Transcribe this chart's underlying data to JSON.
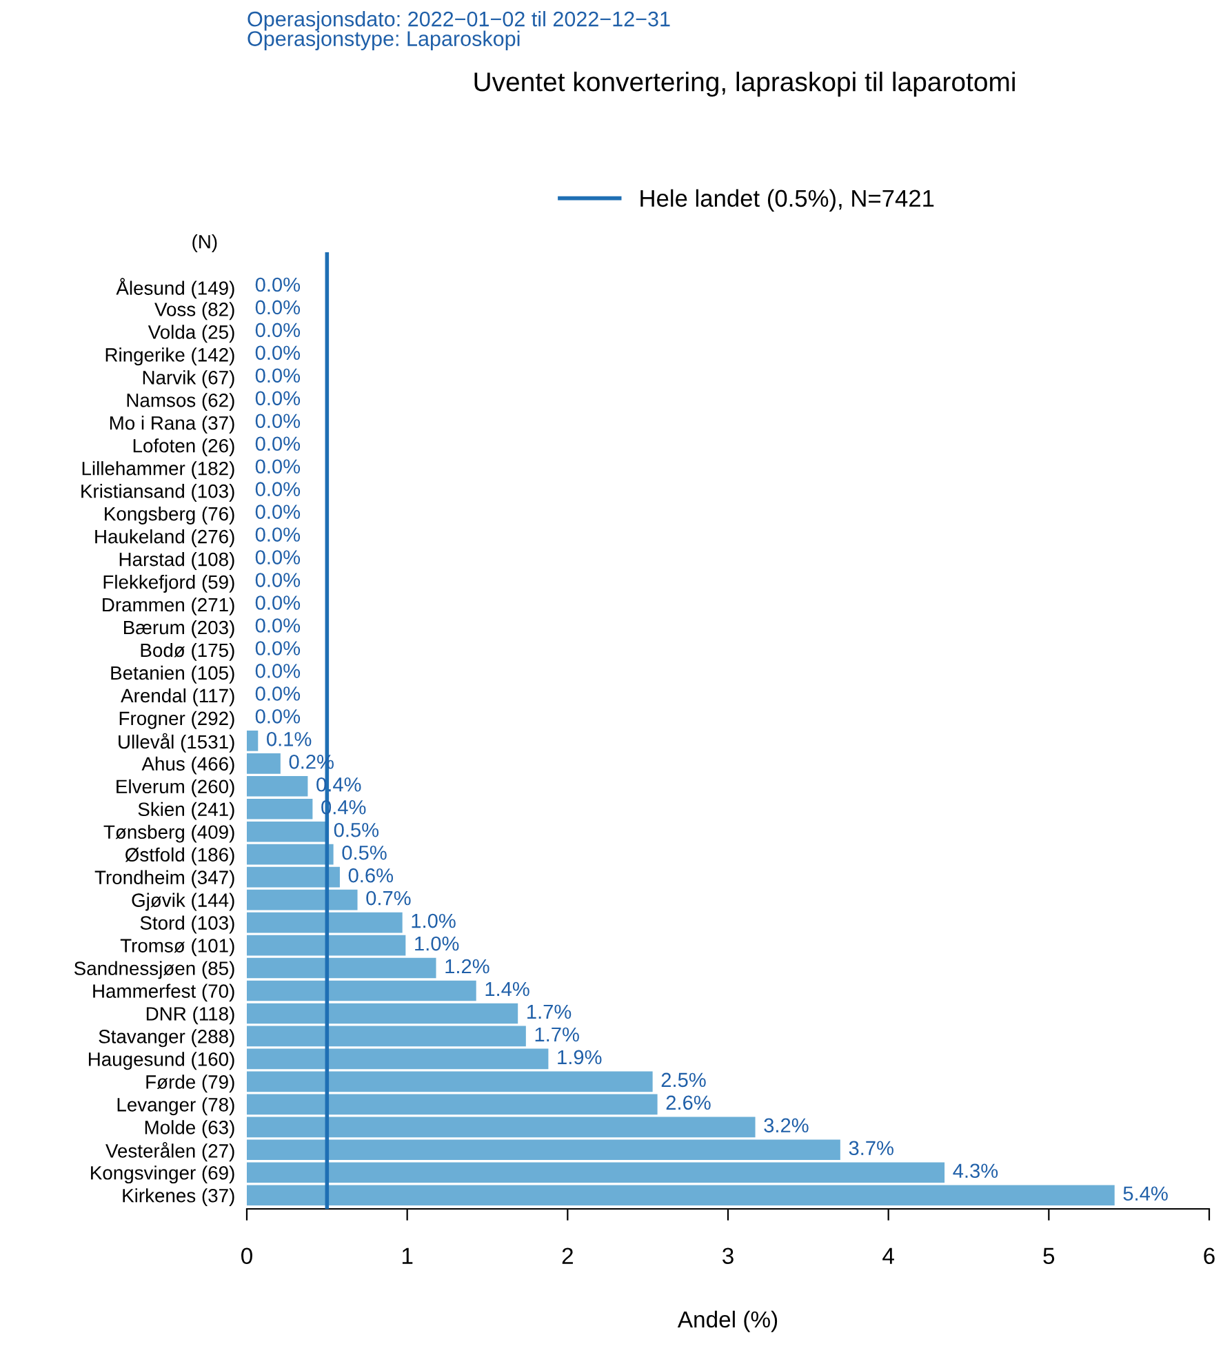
{
  "chart_data": {
    "type": "bar",
    "orientation": "horizontal",
    "title": "Uventet konvertering, lapraskopi til laparotomi",
    "subtitle": "Operasjonsdato: 2022−01−02 til 2022−12−31\nOperasjonstype: Laparoskopi",
    "xlabel": "Andel (%)",
    "annotations": [
      "(N)"
    ],
    "categories": [
      null,
      "Ålesund (149)",
      "Voss (82)",
      "Volda (25)",
      "Ringerike (142)",
      "Narvik (67)",
      "Namsos (62)",
      "Mo i Rana (37)",
      "Lofoten (26)",
      "Lillehammer (182)",
      "Kristiansand (103)",
      "Kongsberg (76)",
      "Haukeland (276)",
      "Harstad (108)",
      "Flekkefjord (59)",
      "Drammen (271)",
      "Bærum (203)",
      "Bodø (175)",
      "Betanien (105)",
      "Arendal (117)",
      "Frogner (292)",
      "Ullevål (1531)",
      "Ahus (466)",
      "Elverum (260)",
      "Skien (241)",
      "Tønsberg (409)",
      "Østfold (186)",
      "Trondheim (347)",
      "Gjøvik (144)",
      "Stord (103)",
      "Tromsø (101)",
      "Sandnessjøen (85)",
      "Hammerfest (70)",
      "DNR (118)",
      "Stavanger (288)",
      "Haugesund (160)",
      "Førde (79)",
      "Levanger (78)",
      "Molde (63)",
      "Vesterålen (27)",
      "Kongsvinger (69)",
      "Kirkenes (37)"
    ],
    "values": [
      null,
      0.0,
      0.0,
      0.0,
      0.0,
      0.0,
      0.0,
      0.0,
      0.0,
      0.0,
      0.0,
      0.0,
      0.0,
      0.0,
      0.0,
      0.0,
      0.0,
      0.0,
      0.0,
      0.0,
      0.0,
      0.07,
      0.21,
      0.38,
      0.41,
      0.49,
      0.54,
      0.58,
      0.69,
      0.97,
      0.99,
      1.18,
      1.43,
      1.69,
      1.74,
      1.88,
      2.53,
      2.56,
      3.17,
      3.7,
      4.35,
      5.41
    ],
    "value_labels": [
      null,
      "0.0%",
      "0.0%",
      "0.0%",
      "0.0%",
      "0.0%",
      "0.0%",
      "0.0%",
      "0.0%",
      "0.0%",
      "0.0%",
      "0.0%",
      "0.0%",
      "0.0%",
      "0.0%",
      "0.0%",
      "0.0%",
      "0.0%",
      "0.0%",
      "0.0%",
      "0.0%",
      "0.1%",
      "0.2%",
      "0.4%",
      "0.4%",
      "0.5%",
      "0.5%",
      "0.6%",
      "0.7%",
      "1.0%",
      "1.0%",
      "1.2%",
      "1.4%",
      "1.7%",
      "1.7%",
      "1.9%",
      "2.5%",
      "2.6%",
      "3.2%",
      "3.7%",
      "4.3%",
      "5.4%"
    ],
    "color": "#6baed6",
    "xlim": [
      0,
      6
    ],
    "xticks": [
      0,
      1,
      2,
      3,
      4,
      5,
      6
    ],
    "ref_lines": [
      {
        "axis": "x",
        "value": 0.5,
        "label": "Hele landet (0.5%), N=7421",
        "color": "#1f6fb4"
      }
    ],
    "legend": "top"
  }
}
